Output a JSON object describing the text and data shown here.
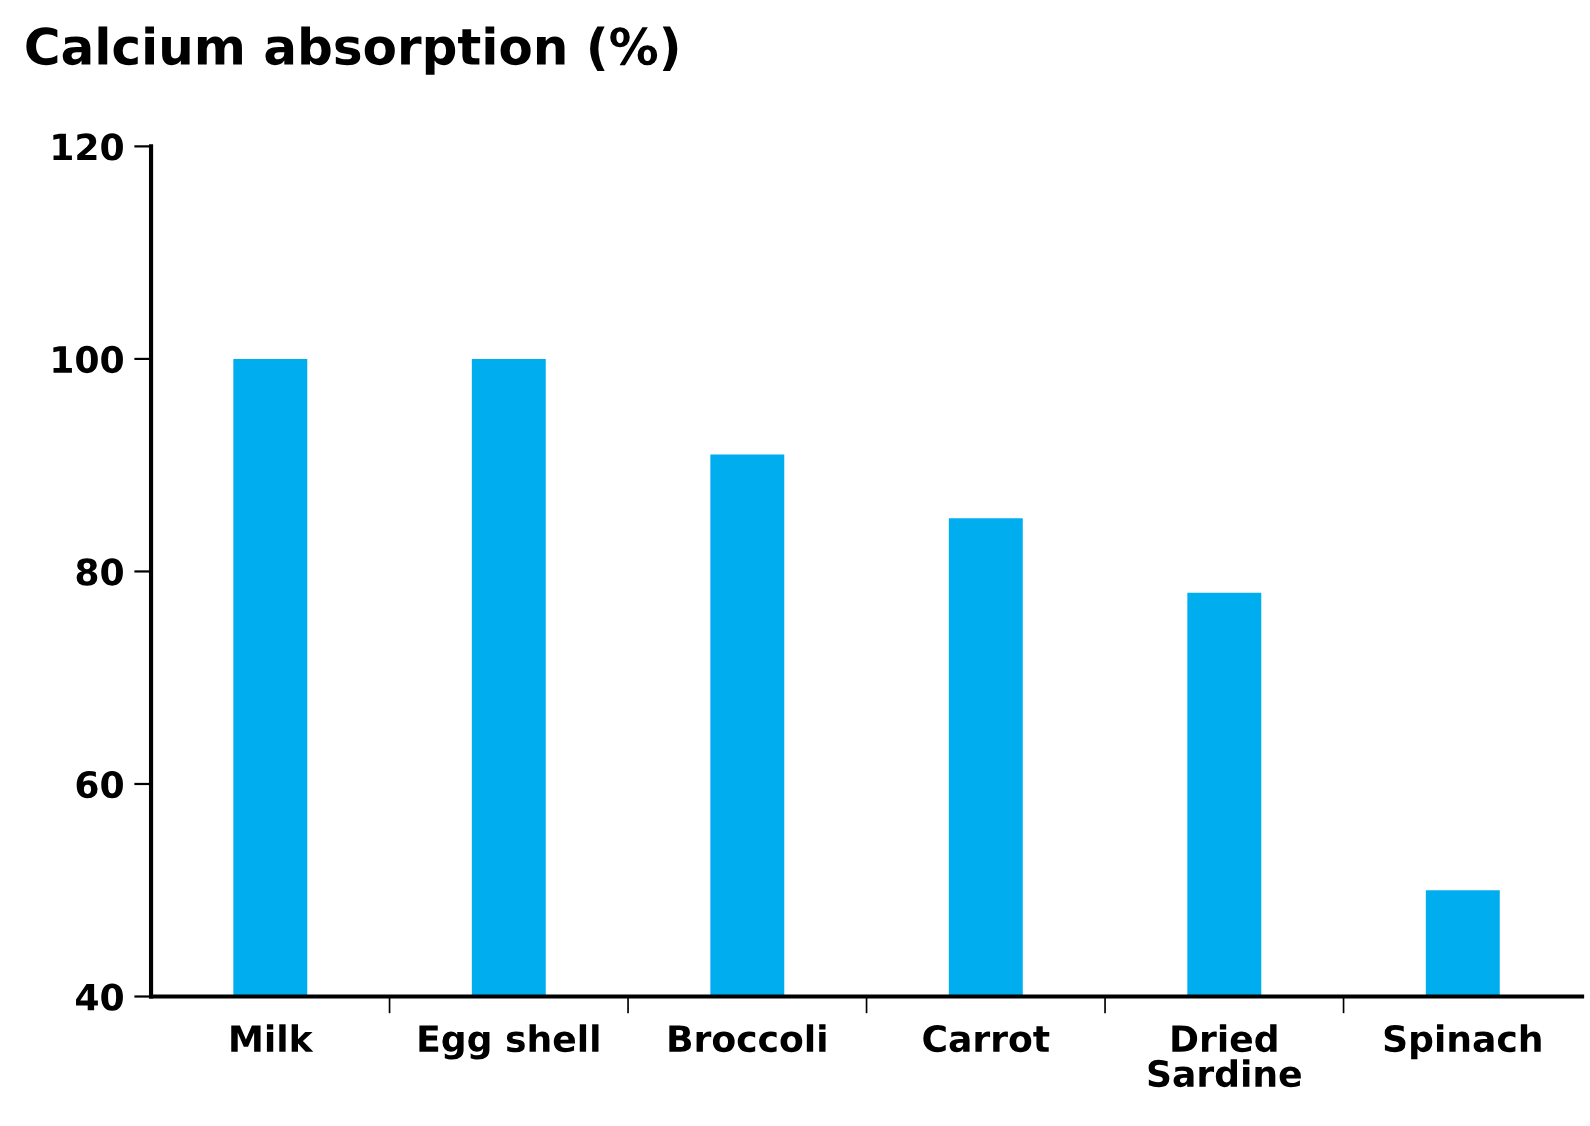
{
  "chart_data": {
    "type": "bar",
    "title": "Calcium absorption (%)",
    "categories": [
      "Milk",
      "Egg shell",
      "Broccoli",
      "Carrot",
      "Dried\nSardine",
      "Spinach"
    ],
    "values": [
      100,
      100,
      91,
      85,
      78,
      50
    ],
    "color": "#00aeef",
    "ylim": [
      40,
      120
    ],
    "yticks": [
      40,
      60,
      80,
      100,
      120
    ],
    "grid": false
  }
}
